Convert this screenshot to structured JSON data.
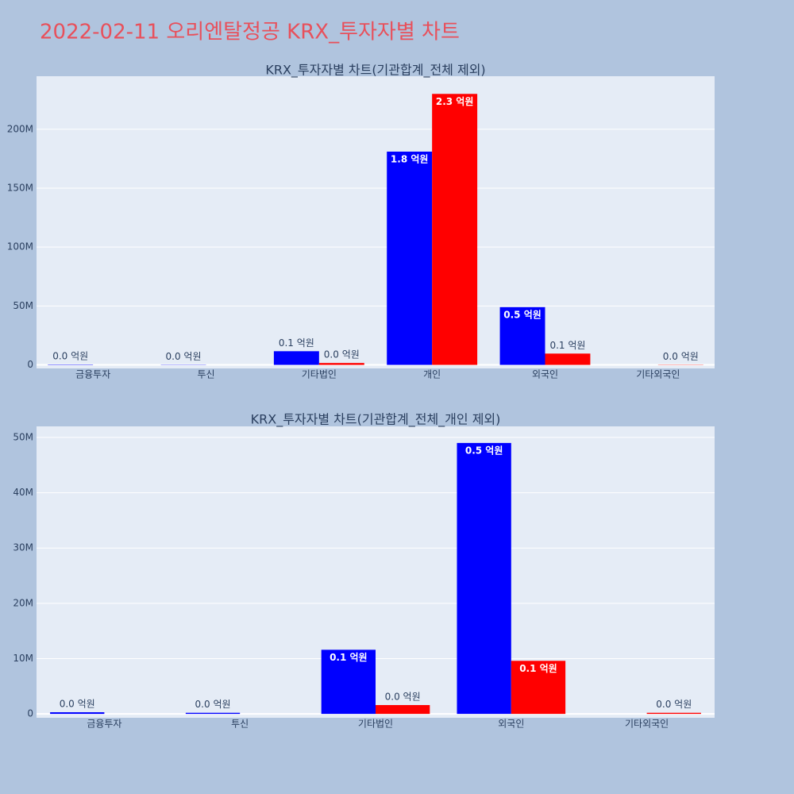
{
  "title": "2022-02-11 오리엔탈정공 KRX_투자자별 차트",
  "chart_data": [
    {
      "type": "bar",
      "title": "KRX_투자자별 차트(기관합계_전체 제외)",
      "categories": [
        "금융투자",
        "투신",
        "기타법인",
        "개인",
        "외국인",
        "기타외국인"
      ],
      "series": [
        {
          "color": "#0000ff",
          "values": [
            0.3,
            0.2,
            11.6,
            181,
            49.0,
            0
          ],
          "value_labels": [
            "0.0 억원",
            "0.0 억원",
            "0.1 억원",
            "1.8 억원",
            "0.5 억원",
            null
          ]
        },
        {
          "color": "#ff0000",
          "values": [
            0,
            0,
            1.6,
            230,
            9.6,
            0.2
          ],
          "value_labels": [
            null,
            null,
            "0.0 억원",
            "2.3 억원",
            "0.1 억원",
            "0.0 억원"
          ]
        }
      ],
      "ylim": [
        -3,
        245
      ],
      "yticks": [
        0,
        {
          "value": 50,
          "label": "50M"
        },
        {
          "value": 100,
          "label": "100M"
        },
        {
          "value": 150,
          "label": "150M"
        },
        {
          "value": 200,
          "label": "200M"
        }
      ],
      "grid": true
    },
    {
      "type": "bar",
      "title": "KRX_투자자별 차트(기관합계_전체_개인 제외)",
      "categories": [
        "금융투자",
        "투신",
        "기타법인",
        "외국인",
        "기타외국인"
      ],
      "series": [
        {
          "color": "#0000ff",
          "values": [
            0.3,
            0.2,
            11.6,
            49.0,
            0
          ],
          "value_labels": [
            "0.0 억원",
            "0.0 억원",
            "0.1 억원",
            "0.5 억원",
            null
          ]
        },
        {
          "color": "#ff0000",
          "values": [
            0,
            0,
            1.6,
            9.6,
            0.2
          ],
          "value_labels": [
            null,
            null,
            "0.0 억원",
            "0.1 억원",
            "0.0 억원"
          ]
        }
      ],
      "ylim": [
        -0.7,
        52
      ],
      "yticks": [
        0,
        {
          "value": 10,
          "label": "10M"
        },
        {
          "value": 20,
          "label": "20M"
        },
        {
          "value": 30,
          "label": "30M"
        },
        {
          "value": 40,
          "label": "40M"
        },
        {
          "value": 50,
          "label": "50M"
        }
      ],
      "grid": true
    }
  ]
}
